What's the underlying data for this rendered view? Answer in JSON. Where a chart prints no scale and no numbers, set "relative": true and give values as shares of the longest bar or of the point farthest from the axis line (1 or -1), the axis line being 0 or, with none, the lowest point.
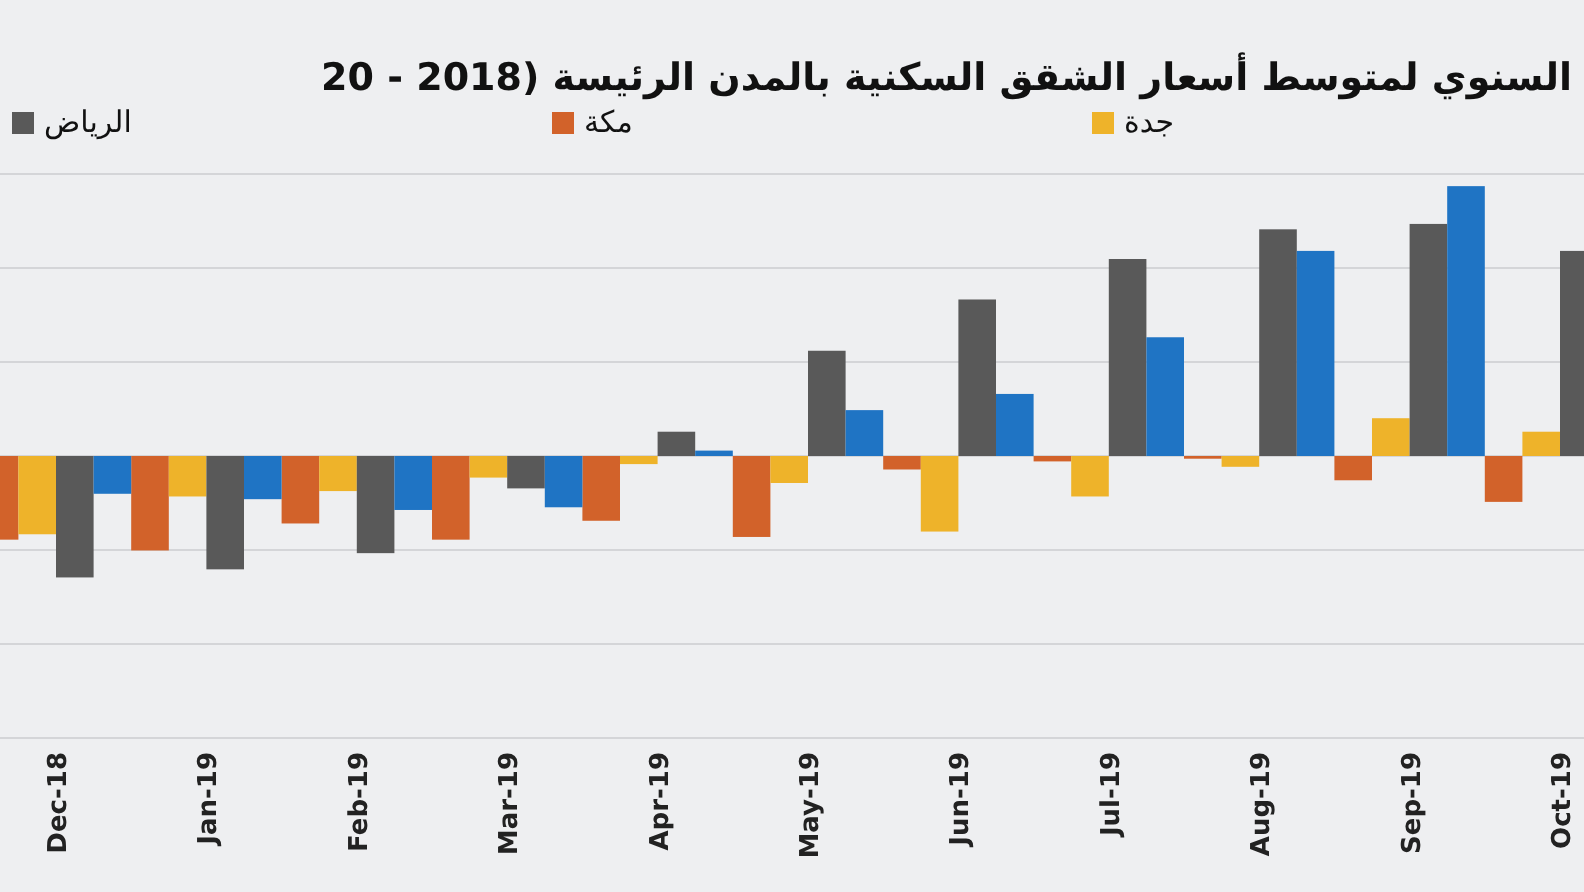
{
  "chart_data": {
    "type": "bar",
    "title": "السنوي لمتوسط أسعار الشقق السكنية بالمدن الرئيسة (2018 - 20",
    "relative": true,
    "grid": "y",
    "legend": "top",
    "categories": [
      "Dec-18",
      "Jan-19",
      "Feb-19",
      "Mar-19",
      "Apr-19",
      "May-19",
      "Jun-19",
      "Jul-19",
      "Aug-19",
      "Sep-19",
      "Oct-19"
    ],
    "series": [
      {
        "name": "مكة",
        "color": "#d2622a",
        "values": [
          -0.31,
          -0.35,
          -0.25,
          -0.31,
          -0.24,
          -0.3,
          -0.05,
          -0.02,
          -0.01,
          -0.09,
          -0.17
        ]
      },
      {
        "name": "جدة",
        "color": "#eeb32a",
        "values": [
          -0.29,
          -0.15,
          -0.13,
          -0.08,
          -0.03,
          -0.1,
          -0.28,
          -0.15,
          -0.04,
          0.14,
          0.09
        ]
      },
      {
        "name": "الرياض",
        "color": "#595959",
        "values": [
          -0.45,
          -0.42,
          -0.36,
          -0.12,
          0.09,
          0.39,
          0.58,
          0.73,
          0.84,
          0.86,
          0.76
        ]
      },
      {
        "color": "#1f74c4",
        "values": [
          -0.14,
          -0.16,
          -0.2,
          -0.19,
          0.02,
          0.17,
          0.23,
          0.44,
          0.76,
          1,
          null
        ]
      }
    ]
  }
}
